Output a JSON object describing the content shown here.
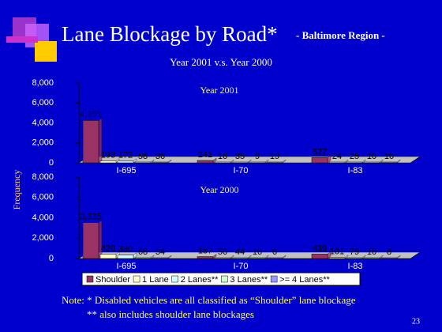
{
  "header": {
    "title": "Lane Blockage by Road*",
    "region": "- Baltimore Region -",
    "subtitle": "Year 2001 v.s. Year 2000",
    "y_label": "Frequency"
  },
  "chart_data": [
    {
      "type": "bar",
      "title": "Year 2001",
      "categories": [
        "I-695",
        "I-70",
        "I-83"
      ],
      "ylim": [
        0,
        8000
      ],
      "yticks": [
        0,
        {
          "value": 2000,
          "label": "2,000"
        },
        {
          "value": 4000,
          "label": "4,000"
        },
        {
          "value": 6000,
          "label": "6,000"
        },
        {
          "value": 8000,
          "label": "8,000"
        }
      ],
      "series": [
        {
          "color": "#993366",
          "values": [
            4251,
            241,
            527
          ],
          "value_labels": [
            "4,251",
            "241",
            "527"
          ]
        },
        {
          "color": "#ffffcc",
          "values": [
            193,
            16,
            24
          ]
        },
        {
          "color": "#ccffff",
          "values": [
            172,
            35,
            25
          ]
        },
        {
          "color": "#ccffcc",
          "values": [
            58,
            9,
            10
          ]
        },
        {
          "color": "#9999ff",
          "values": [
            36,
            19,
            10
          ]
        }
      ]
    },
    {
      "type": "bar",
      "title": "Year 2000",
      "categories": [
        "I-695",
        "I-70",
        "I-83"
      ],
      "ylim": [
        0,
        8000
      ],
      "yticks": [
        0,
        {
          "value": 2000,
          "label": "2,000"
        },
        {
          "value": 4000,
          "label": "4,000"
        },
        {
          "value": 6000,
          "label": "6,000"
        },
        {
          "value": 8000,
          "label": "8,000"
        }
      ],
      "series": [
        {
          "name": "Shoulder",
          "color": "#993366",
          "values": [
            3535,
            187,
            439
          ],
          "value_labels": [
            "3,535",
            "187",
            "439"
          ]
        },
        {
          "name": "1 Lane",
          "color": "#ffffcc",
          "values": [
            420,
            56,
            101
          ]
        },
        {
          "name": "2 Lanes**",
          "color": "#ccffff",
          "values": [
            330,
            44,
            79
          ]
        },
        {
          "name": "3 Lanes**",
          "color": "#ccffcc",
          "values": [
            68,
            16,
            10
          ]
        },
        {
          "name": ">= 4 Lanes**",
          "color": "#9999ff",
          "values": [
            34,
            6,
            8
          ]
        }
      ]
    }
  ],
  "notes": [
    "Note: * Disabled vehicles are all classified as “Shoulder” lane blockage",
    "** also includes shoulder lane blockages"
  ],
  "page_number": "23"
}
